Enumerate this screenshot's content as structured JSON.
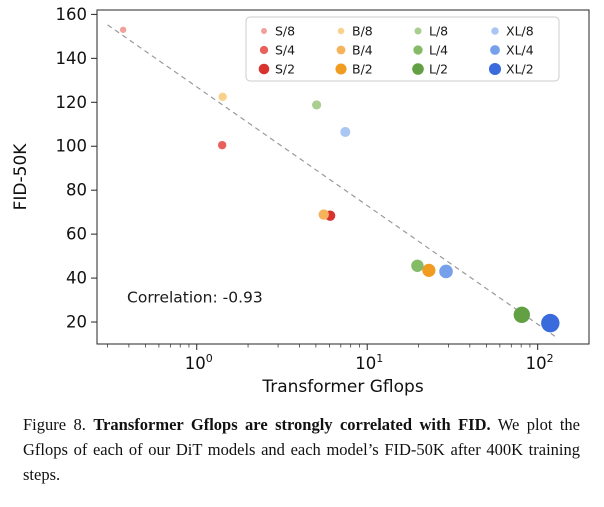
{
  "chart_data": {
    "type": "scatter",
    "title": "",
    "xlabel": "Transformer Gflops",
    "ylabel": "FID-50K",
    "x_scale": "log",
    "xlim": [
      0.26,
      200
    ],
    "ylim": [
      10,
      162
    ],
    "grid": false,
    "legend_position": "upper right",
    "legend_columns": [
      "S",
      "B",
      "L",
      "XL"
    ],
    "y_ticks": [
      20,
      40,
      60,
      80,
      100,
      120,
      140,
      160
    ],
    "x_ticks": [
      {
        "value": 1,
        "base": "10",
        "exp": "0"
      },
      {
        "value": 10,
        "base": "10",
        "exp": "1"
      },
      {
        "value": 100,
        "base": "10",
        "exp": "2"
      }
    ],
    "series": [
      {
        "name": "S/8",
        "x": 0.37,
        "y": 153.0,
        "color": "#f2a09b",
        "size": 3.2
      },
      {
        "name": "S/4",
        "x": 1.41,
        "y": 100.5,
        "color": "#e8615c",
        "size": 4.2
      },
      {
        "name": "S/2",
        "x": 6.06,
        "y": 68.4,
        "color": "#d93330",
        "size": 5.2
      },
      {
        "name": "B/8",
        "x": 1.42,
        "y": 122.5,
        "color": "#f8d18a",
        "size": 4.2
      },
      {
        "name": "B/4",
        "x": 5.56,
        "y": 68.9,
        "color": "#f7b25c",
        "size": 5.2
      },
      {
        "name": "B/2",
        "x": 23.0,
        "y": 43.5,
        "color": "#f09c20",
        "size": 6.6
      },
      {
        "name": "L/8",
        "x": 5.05,
        "y": 118.8,
        "color": "#a9ce90",
        "size": 4.6
      },
      {
        "name": "L/4",
        "x": 19.7,
        "y": 45.6,
        "color": "#85bb66",
        "size": 6.2
      },
      {
        "name": "L/2",
        "x": 80.7,
        "y": 23.3,
        "color": "#63a043",
        "size": 8.2
      },
      {
        "name": "XL/8",
        "x": 7.44,
        "y": 106.5,
        "color": "#a9c7f2",
        "size": 5.0
      },
      {
        "name": "XL/4",
        "x": 29.0,
        "y": 43.0,
        "color": "#76a1ea",
        "size": 6.8
      },
      {
        "name": "XL/2",
        "x": 118.6,
        "y": 19.5,
        "color": "#3a6bdc",
        "size": 9.2
      }
    ],
    "trendline": {
      "type": "linear-logx",
      "intercept": 127,
      "slope": -54,
      "x_start": 0.3,
      "x_end": 130,
      "color": "#9a9a9a",
      "dash": "5 4"
    },
    "annotation": {
      "text": "Correlation: -0.93",
      "x": 0.39,
      "y": 29
    }
  },
  "caption": {
    "label": "Figure 8.",
    "bold": "Transformer Gflops are strongly correlated with FID.",
    "text": "We plot the Gflops of each of our DiT models and each model’s FID-50K after 400K training steps."
  }
}
